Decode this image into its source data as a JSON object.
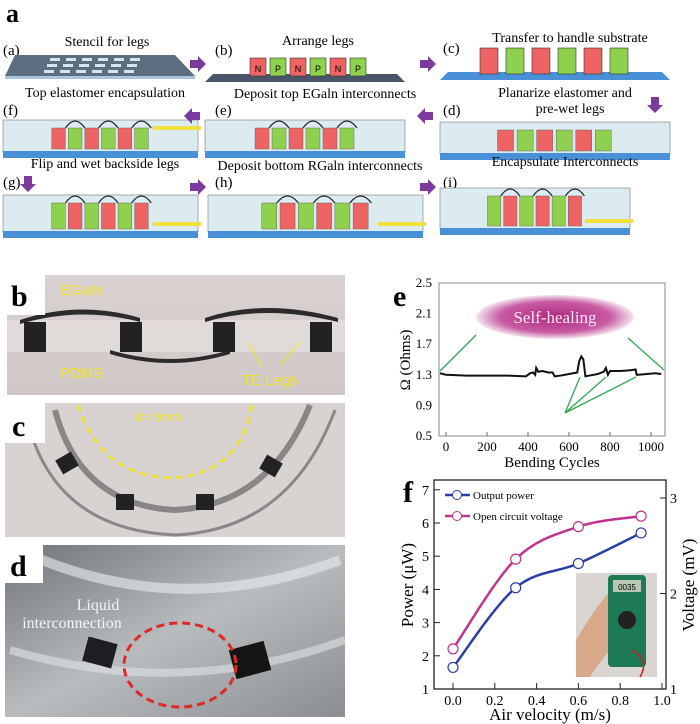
{
  "panel_a": {
    "label": "a",
    "steps": [
      {
        "tag": "(a)",
        "title": "Stencil for legs"
      },
      {
        "tag": "(b)",
        "title": "Arrange legs"
      },
      {
        "tag": "(c)",
        "title": "Transfer to handle substrate"
      },
      {
        "tag": "(d)",
        "title": "Planarize elastomer and",
        "title2": "pre-wet legs"
      },
      {
        "tag": "(e)",
        "title": "Deposit top EGaln interconnects"
      },
      {
        "tag": "(f)",
        "title": "Top elastomer encapsulation"
      },
      {
        "tag": "(g)",
        "title": "Flip and wet backside legs"
      },
      {
        "tag": "(h)",
        "title": "Deposit bottom RGaln interconnects"
      },
      {
        "tag": "(i)",
        "title": "Encapsulate Interconnects"
      }
    ],
    "leg_letters": [
      "N",
      "P",
      "N",
      "P",
      "N",
      "P"
    ],
    "colors": {
      "n_leg": "#ee6464",
      "p_leg": "#8fd14f",
      "substrate": "#4a90d9",
      "arrow": "#7a3a9e",
      "wire": "#f0e040"
    }
  },
  "panel_b": {
    "label": "b",
    "egain": "EGaIn",
    "pdms": "PDMS",
    "te_legs": "TE Legs"
  },
  "panel_c": {
    "label": "c",
    "diameter": "d = 9mm"
  },
  "panel_d": {
    "label": "d",
    "caption1": "Liquid",
    "caption2": "interconnection"
  },
  "chart_data": [
    {
      "panel": "e",
      "type": "line",
      "xlabel": "Bending Cycles",
      "ylabel": "Ω (Ohms)",
      "xlim": [
        -30,
        1050
      ],
      "ylim": [
        0.5,
        2.5
      ],
      "xticks": [
        "0",
        "200",
        "400",
        "600",
        "800",
        "1000"
      ],
      "yticks": [
        "0.5",
        "0.9",
        "1.3",
        "1.7",
        "2.1",
        "2.5"
      ],
      "annotation": "Self-healing",
      "series": [
        {
          "x": [
            -30,
            0,
            100,
            200,
            300,
            390,
            410,
            425,
            435,
            440,
            450,
            470,
            500,
            520,
            530,
            560,
            600,
            640,
            650,
            660,
            670,
            680,
            700,
            740,
            770,
            780,
            790,
            800,
            850,
            900,
            925,
            930,
            940,
            980,
            1020,
            1050
          ],
          "y": [
            1.32,
            1.3,
            1.29,
            1.29,
            1.29,
            1.28,
            1.32,
            1.33,
            1.3,
            1.39,
            1.34,
            1.35,
            1.33,
            1.33,
            1.28,
            1.29,
            1.31,
            1.33,
            1.48,
            1.54,
            1.5,
            1.28,
            1.29,
            1.31,
            1.34,
            1.39,
            1.3,
            1.35,
            1.35,
            1.36,
            1.37,
            1.3,
            1.3,
            1.31,
            1.32,
            1.31
          ]
        }
      ],
      "colors": {
        "line": "#111111",
        "callout": "#2fa84f",
        "bubble": "#b0287f"
      }
    },
    {
      "panel": "f",
      "type": "line",
      "xlabel": "Air velocity (m/s)",
      "ylabel": "Power (μW)",
      "ylabel_right": "Voltage (mV)",
      "xlim": [
        -0.1,
        1.0
      ],
      "ylim": [
        1,
        7
      ],
      "ylim_right": [
        1,
        3.1
      ],
      "xticks": [
        "0.0",
        "0.2",
        "0.4",
        "0.6",
        "0.8",
        "1.0"
      ],
      "yticks": [
        "1",
        "2",
        "3",
        "4",
        "5",
        "6",
        "7"
      ],
      "yticks_right": [
        "1",
        "2",
        "3"
      ],
      "legend_position": "top-left",
      "series": [
        {
          "name": "Output power",
          "axis": "left",
          "x": [
            0.0,
            0.3,
            0.6,
            0.9
          ],
          "y": [
            1.65,
            4.05,
            4.78,
            5.7
          ],
          "color": "#2b3ea8"
        },
        {
          "name": "Open circuit voltage",
          "axis": "right",
          "x": [
            0.0,
            0.3,
            0.6,
            0.9
          ],
          "y": [
            1.42,
            2.36,
            2.7,
            2.81
          ],
          "color": "#c0328f"
        }
      ],
      "inset_display": "0035"
    }
  ]
}
